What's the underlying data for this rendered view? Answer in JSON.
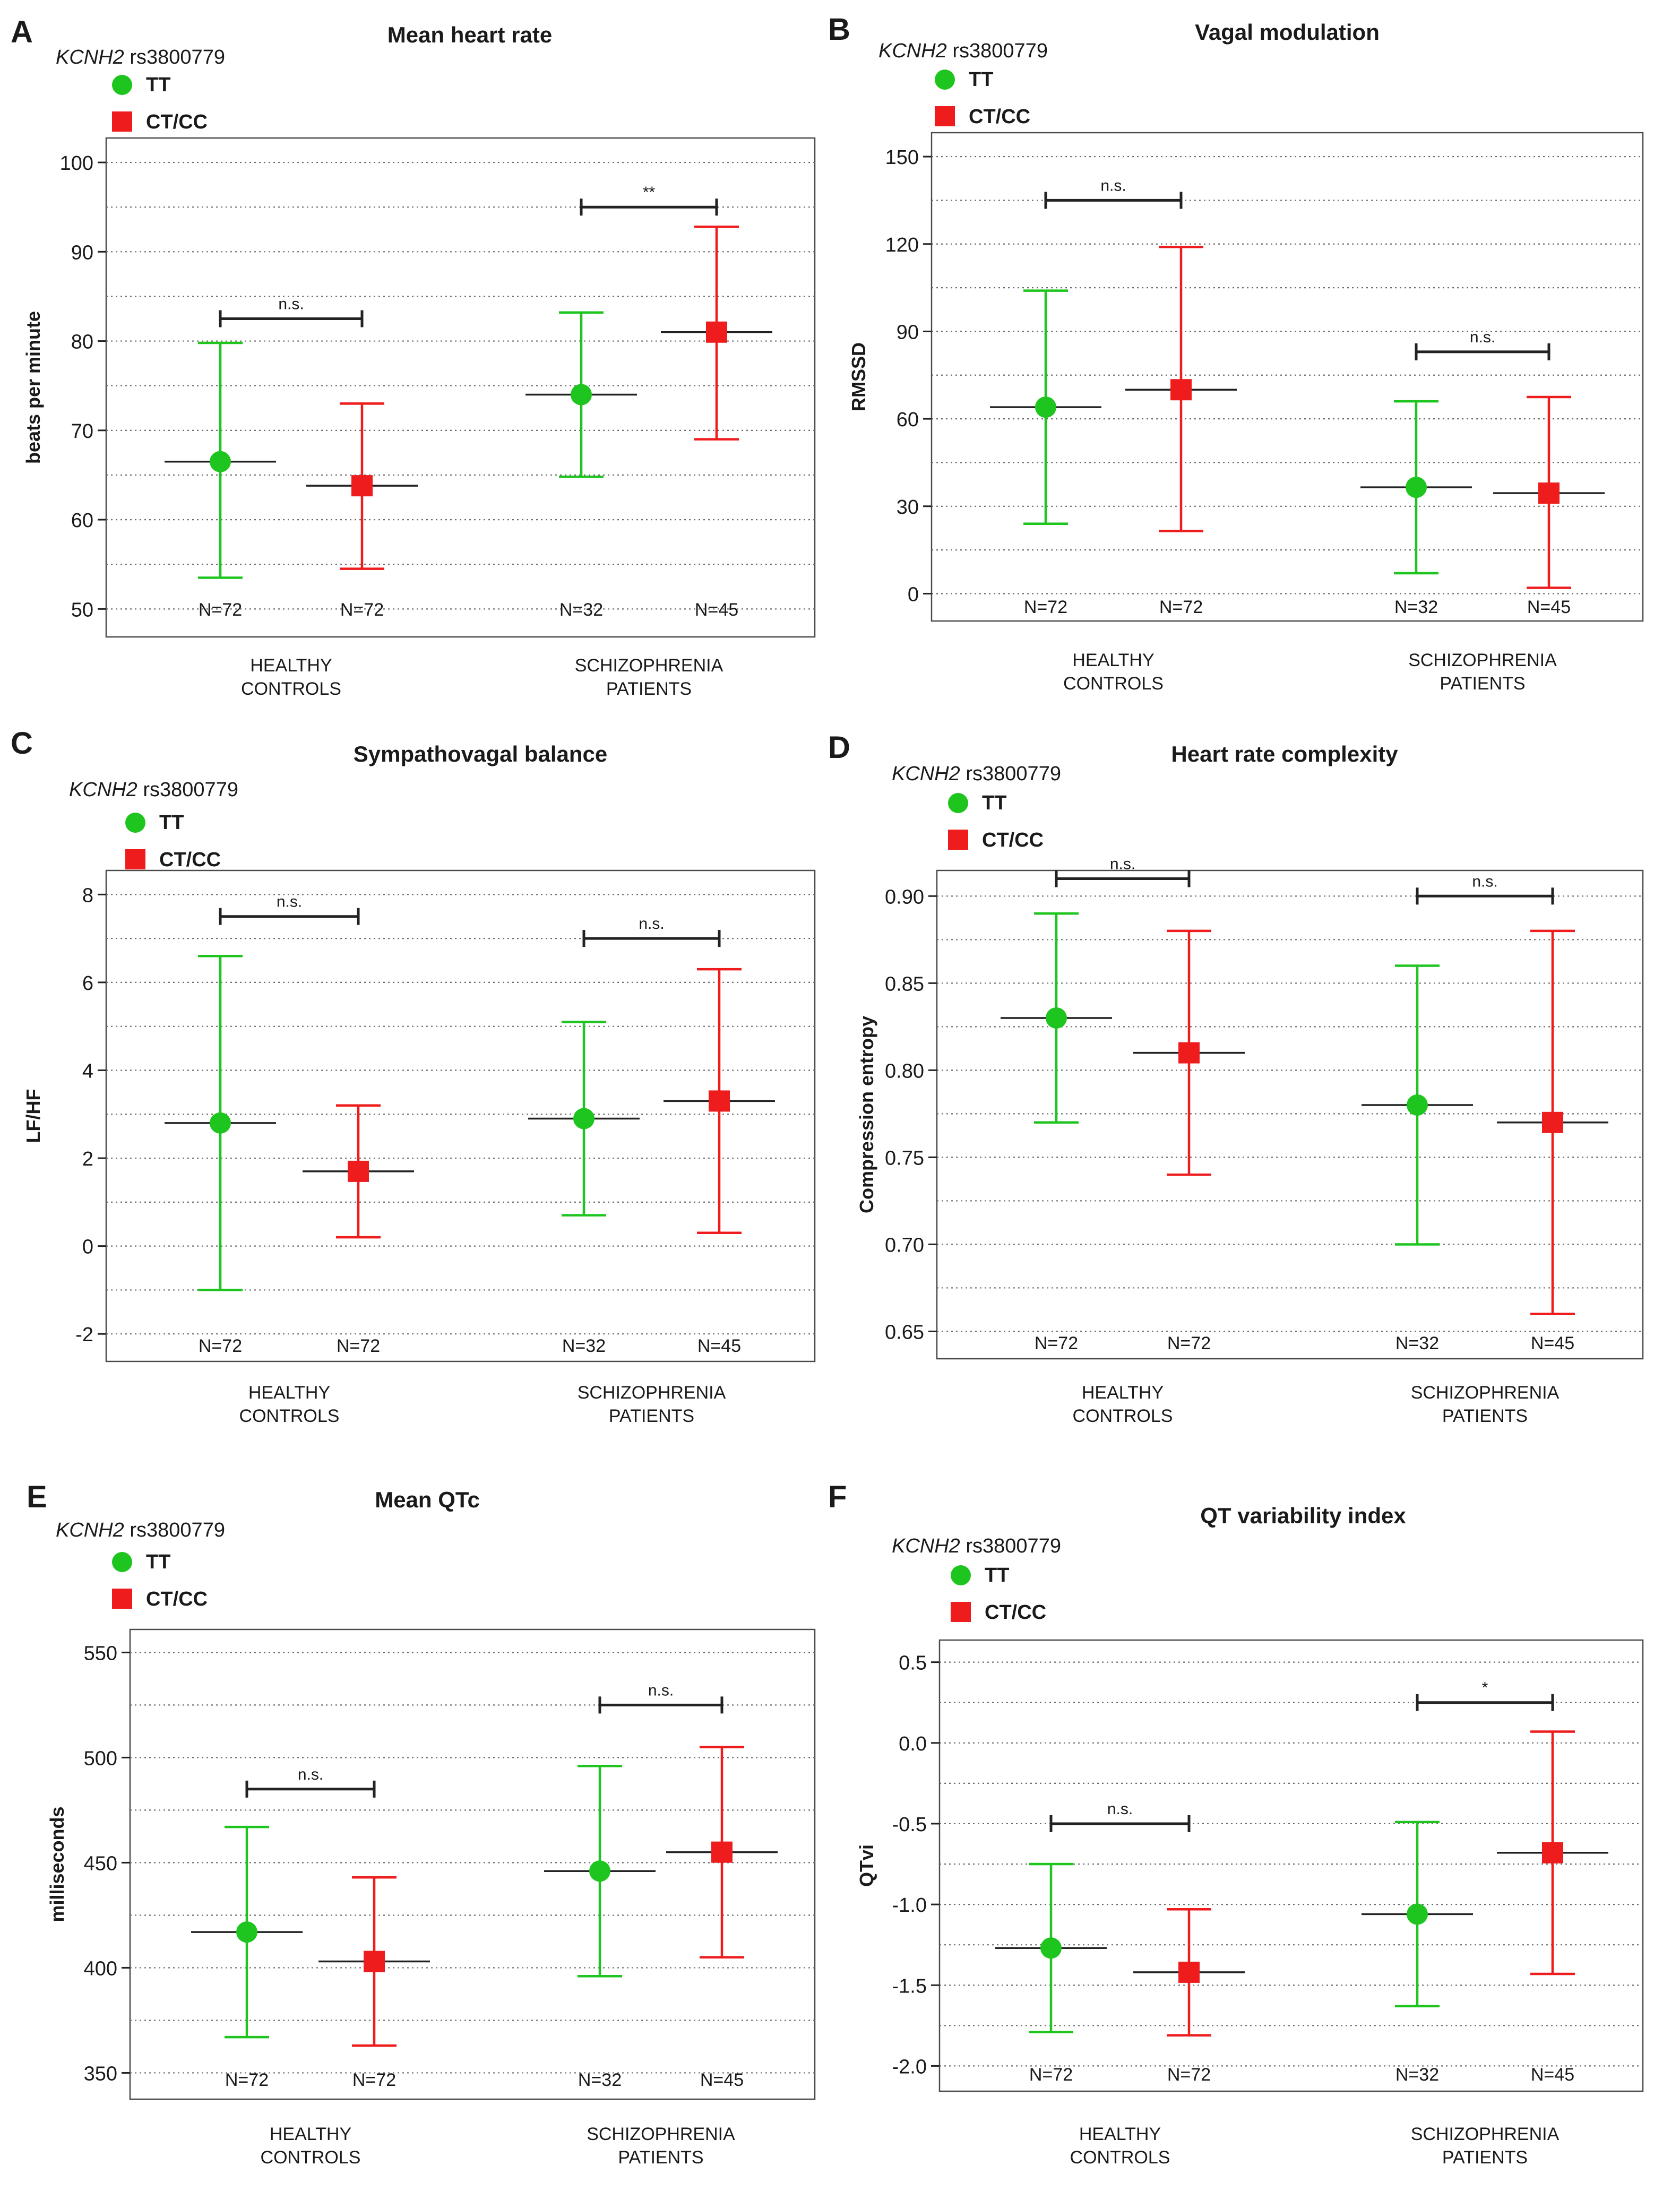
{
  "figure": {
    "gene_italic": "KCNH2",
    "snp": " rs3800779",
    "legend": {
      "tt": "TT",
      "ctcc": "CT/CC"
    },
    "colors": {
      "tt": "#1ec51e",
      "ctcc": "#ee1c1c",
      "text": "#1a1a1a",
      "grid": "#6b6b6b"
    }
  },
  "chart_data": [
    {
      "type": "scatter",
      "panel": "A",
      "title": "Mean heart rate",
      "ylabel": "beats per minute",
      "ylim": [
        50,
        100
      ],
      "yticks": [
        "50",
        "60",
        "70",
        "80",
        "90",
        "100"
      ],
      "groups": [
        "HEALTHY|CONTROLS",
        "SCHIZOPHRENIA|PATIENTS"
      ],
      "series": [
        {
          "name": "TT",
          "means": [
            66.5,
            74.0
          ],
          "lower": [
            53.5,
            64.8
          ],
          "upper": [
            79.8,
            83.2
          ],
          "n": [
            "N=72",
            "N=32"
          ]
        },
        {
          "name": "CT/CC",
          "means": [
            63.8,
            81.0
          ],
          "lower": [
            54.5,
            69.0
          ],
          "upper": [
            73.0,
            92.8
          ],
          "n": [
            "N=72",
            "N=45"
          ]
        }
      ],
      "significance": [
        {
          "group": 0,
          "y": 82.5,
          "label": "n.s."
        },
        {
          "group": 1,
          "y": 95.0,
          "label": "**"
        }
      ]
    },
    {
      "type": "scatter",
      "panel": "B",
      "title": "Vagal modulation",
      "ylabel": "RMSSD",
      "ylim": [
        0,
        150
      ],
      "yticks": [
        "0",
        "30",
        "60",
        "90",
        "120",
        "150"
      ],
      "groups": [
        "HEALTHY|CONTROLS",
        "SCHIZOPHRENIA|PATIENTS"
      ],
      "series": [
        {
          "name": "TT",
          "means": [
            64,
            36.5
          ],
          "lower": [
            24,
            7
          ],
          "upper": [
            104,
            66
          ],
          "n": [
            "N=72",
            "N=32"
          ]
        },
        {
          "name": "CT/CC",
          "means": [
            70,
            34.5
          ],
          "lower": [
            21.5,
            2
          ],
          "upper": [
            119,
            67.5
          ],
          "n": [
            "N=72",
            "N=45"
          ]
        }
      ],
      "significance": [
        {
          "group": 0,
          "y": 135,
          "label": "n.s."
        },
        {
          "group": 1,
          "y": 83,
          "label": "n.s."
        }
      ]
    },
    {
      "type": "scatter",
      "panel": "C",
      "title": "Sympathovagal balance",
      "ylabel": "LF/HF",
      "ylim": [
        -2,
        8
      ],
      "yticks": [
        "-2",
        "0",
        "2",
        "4",
        "6",
        "8"
      ],
      "groups": [
        "HEALTHY|CONTROLS",
        "SCHIZOPHRENIA|PATIENTS"
      ],
      "series": [
        {
          "name": "TT",
          "means": [
            2.8,
            2.9
          ],
          "lower": [
            -1.0,
            0.7
          ],
          "upper": [
            6.6,
            5.1
          ],
          "n": [
            "N=72",
            "N=32"
          ]
        },
        {
          "name": "CT/CC",
          "means": [
            1.7,
            3.3
          ],
          "lower": [
            0.2,
            0.3
          ],
          "upper": [
            3.2,
            6.3
          ],
          "n": [
            "N=72",
            "N=45"
          ]
        }
      ],
      "significance": [
        {
          "group": 0,
          "y": 7.5,
          "label": "n.s."
        },
        {
          "group": 1,
          "y": 7.0,
          "label": "n.s."
        }
      ]
    },
    {
      "type": "scatter",
      "panel": "D",
      "title": "Heart rate complexity",
      "ylabel": "Compression entropy",
      "ylim": [
        0.65,
        0.9
      ],
      "yticks": [
        "0.65",
        "0.70",
        "0.75",
        "0.80",
        "0.85",
        "0.90"
      ],
      "groups": [
        "HEALTHY|CONTROLS",
        "SCHIZOPHRENIA|PATIENTS"
      ],
      "series": [
        {
          "name": "TT",
          "means": [
            0.83,
            0.78
          ],
          "lower": [
            0.77,
            0.7
          ],
          "upper": [
            0.89,
            0.86
          ],
          "n": [
            "N=72",
            "N=32"
          ]
        },
        {
          "name": "CT/CC",
          "means": [
            0.81,
            0.77
          ],
          "lower": [
            0.74,
            0.66
          ],
          "upper": [
            0.88,
            0.88
          ],
          "n": [
            "N=72",
            "N=45"
          ]
        }
      ],
      "significance": [
        {
          "group": 0,
          "y": 0.91,
          "label": "n.s."
        },
        {
          "group": 1,
          "y": 0.9,
          "label": "n.s."
        }
      ]
    },
    {
      "type": "scatter",
      "panel": "E",
      "title": "Mean QTc",
      "ylabel": "milliseconds",
      "ylim": [
        350,
        550
      ],
      "yticks": [
        "350",
        "400",
        "450",
        "500",
        "550"
      ],
      "groups": [
        "HEALTHY|CONTROLS",
        "SCHIZOPHRENIA|PATIENTS"
      ],
      "series": [
        {
          "name": "TT",
          "means": [
            417,
            446
          ],
          "lower": [
            367,
            396
          ],
          "upper": [
            467,
            496
          ],
          "n": [
            "N=72",
            "N=32"
          ]
        },
        {
          "name": "CT/CC",
          "means": [
            403,
            455
          ],
          "lower": [
            363,
            405
          ],
          "upper": [
            443,
            505
          ],
          "n": [
            "N=72",
            "N=45"
          ]
        }
      ],
      "significance": [
        {
          "group": 0,
          "y": 485,
          "label": "n.s."
        },
        {
          "group": 1,
          "y": 525,
          "label": "n.s."
        }
      ]
    },
    {
      "type": "scatter",
      "panel": "F",
      "title": "QT variability index",
      "ylabel": "QTvi",
      "ylim": [
        -2.0,
        0.5
      ],
      "yticks": [
        "-2.0",
        "-1.5",
        "-1.0",
        "-0.5",
        "0.0",
        "0.5"
      ],
      "groups": [
        "HEALTHY|CONTROLS",
        "SCHIZOPHRENIA|PATIENTS"
      ],
      "series": [
        {
          "name": "TT",
          "means": [
            -1.27,
            -1.06
          ],
          "lower": [
            -1.79,
            -1.63
          ],
          "upper": [
            -0.75,
            -0.49
          ],
          "n": [
            "N=72",
            "N=32"
          ]
        },
        {
          "name": "CT/CC",
          "means": [
            -1.42,
            -0.68
          ],
          "lower": [
            -1.81,
            -1.43
          ],
          "upper": [
            -1.03,
            0.07
          ],
          "n": [
            "N=72",
            "N=45"
          ]
        }
      ],
      "significance": [
        {
          "group": 0,
          "y": -0.5,
          "label": "n.s."
        },
        {
          "group": 1,
          "y": 0.25,
          "label": "*"
        }
      ]
    }
  ]
}
